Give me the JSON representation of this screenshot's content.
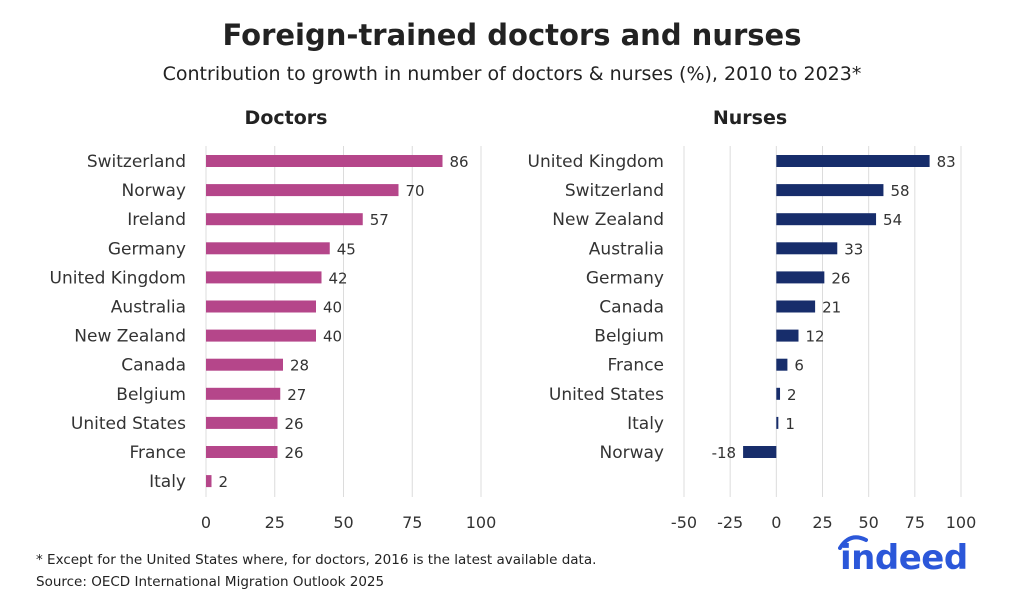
{
  "title": "Foreign-trained doctors and nurses",
  "subtitle": "Contribution to growth in number of doctors & nurses (%), 2010 to 2023*",
  "footnote": "* Except for the United States where, for doctors, 2016 is the latest available data.",
  "source": "Source: OECD International Migration Outlook 2025",
  "logo_text": "indeed",
  "chart_data": [
    {
      "type": "bar",
      "orientation": "horizontal",
      "title": "Doctors",
      "color": "#b5468a",
      "categories": [
        "Switzerland",
        "Norway",
        "Ireland",
        "Germany",
        "United Kingdom",
        "Australia",
        "New Zealand",
        "Canada",
        "Belgium",
        "United States",
        "France",
        "Italy"
      ],
      "values": [
        86,
        70,
        57,
        45,
        42,
        40,
        40,
        28,
        27,
        26,
        26,
        2
      ],
      "xlim": [
        0,
        100
      ],
      "ticks": [
        0,
        25,
        50,
        75,
        100
      ],
      "grid": true
    },
    {
      "type": "bar",
      "orientation": "horizontal",
      "title": "Nurses",
      "color": "#172d6b",
      "categories": [
        "United Kingdom",
        "Switzerland",
        "New Zealand",
        "Australia",
        "Germany",
        "Canada",
        "Belgium",
        "France",
        "United States",
        "Italy",
        "Norway"
      ],
      "values": [
        83,
        58,
        54,
        33,
        26,
        21,
        12,
        6,
        2,
        1,
        -18
      ],
      "xlim": [
        -50,
        100
      ],
      "ticks": [
        -50,
        -25,
        0,
        25,
        50,
        75,
        100
      ],
      "grid": true
    }
  ]
}
